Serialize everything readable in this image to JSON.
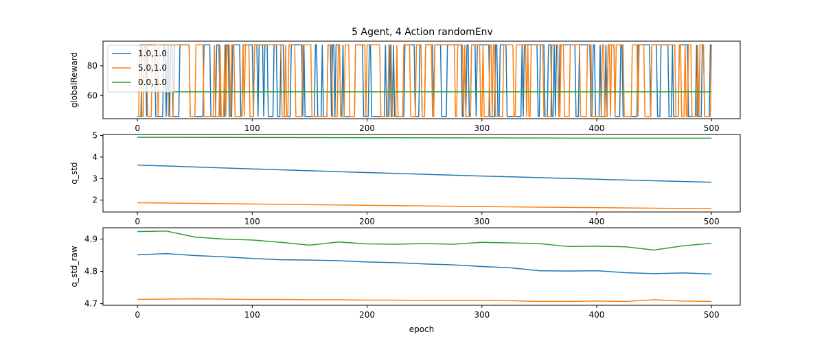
{
  "figure": {
    "title": "5 Agent, 4 Action randomEnv"
  },
  "legend": {
    "entries": [
      {
        "label": "1.0,1.0",
        "color": "#1f77b4"
      },
      {
        "label": "5.0,1.0",
        "color": "#ff7f0e"
      },
      {
        "label": "0.0,1.0",
        "color": "#2ca02c"
      }
    ]
  },
  "chart_data": [
    {
      "type": "line",
      "title": "5 Agent, 4 Action randomEnv",
      "xlabel": "",
      "ylabel": "globalReward",
      "xlim": [
        -30,
        525
      ],
      "ylim": [
        44.5,
        96.5
      ],
      "xticks": [
        0,
        100,
        200,
        300,
        400,
        500
      ],
      "yticks": [
        60,
        80
      ],
      "legend": "top-left",
      "series": [
        {
          "name": "1.0,1.0",
          "color": "#1f77b4",
          "pattern": "switch",
          "levels": [
            46,
            94
          ],
          "x": [
            0,
            500
          ]
        },
        {
          "name": "5.0,1.0",
          "color": "#ff7f0e",
          "pattern": "switch",
          "levels": [
            46,
            94
          ],
          "x": [
            0,
            500
          ]
        },
        {
          "name": "0.0,1.0",
          "color": "#2ca02c",
          "pattern": "flat",
          "levels": [
            62.5
          ],
          "x": [
            0,
            500
          ]
        }
      ]
    },
    {
      "type": "line",
      "xlabel": "",
      "ylabel": "q_std",
      "xlim": [
        -30,
        525
      ],
      "ylim": [
        1.45,
        5.05
      ],
      "xticks": [
        0,
        100,
        200,
        300,
        400,
        500
      ],
      "yticks": [
        2,
        3,
        4,
        5
      ],
      "series": [
        {
          "name": "1.0,1.0",
          "color": "#1f77b4",
          "x": [
            0,
            100,
            200,
            300,
            400,
            500
          ],
          "y": [
            3.63,
            3.45,
            3.28,
            3.12,
            2.97,
            2.83
          ]
        },
        {
          "name": "5.0,1.0",
          "color": "#ff7f0e",
          "x": [
            0,
            100,
            200,
            300,
            400,
            500
          ],
          "y": [
            1.88,
            1.82,
            1.76,
            1.7,
            1.65,
            1.6
          ]
        },
        {
          "name": "0.0,1.0",
          "color": "#2ca02c",
          "x": [
            0,
            100,
            200,
            300,
            400,
            500
          ],
          "y": [
            4.92,
            4.91,
            4.9,
            4.89,
            4.88,
            4.88
          ]
        }
      ]
    },
    {
      "type": "line",
      "xlabel": "epoch",
      "ylabel": "q_std_raw",
      "xlim": [
        -30,
        525
      ],
      "ylim": [
        4.695,
        4.935
      ],
      "xticks": [
        0,
        100,
        200,
        300,
        400,
        500
      ],
      "yticks": [
        4.7,
        4.8,
        4.9
      ],
      "series": [
        {
          "name": "1.0,1.0",
          "color": "#1f77b4",
          "x": [
            0,
            25,
            50,
            75,
            100,
            125,
            150,
            175,
            200,
            225,
            250,
            275,
            300,
            325,
            350,
            375,
            400,
            425,
            450,
            475,
            500
          ],
          "y": [
            4.851,
            4.855,
            4.849,
            4.845,
            4.84,
            4.836,
            4.835,
            4.833,
            4.829,
            4.827,
            4.823,
            4.82,
            4.815,
            4.811,
            4.802,
            4.801,
            4.802,
            4.796,
            4.793,
            4.795,
            4.792
          ]
        },
        {
          "name": "5.0,1.0",
          "color": "#ff7f0e",
          "x": [
            0,
            25,
            50,
            75,
            100,
            125,
            150,
            175,
            200,
            225,
            250,
            275,
            300,
            325,
            350,
            375,
            400,
            425,
            450,
            475,
            500
          ],
          "y": [
            4.713,
            4.714,
            4.715,
            4.714,
            4.713,
            4.713,
            4.712,
            4.712,
            4.711,
            4.711,
            4.71,
            4.71,
            4.71,
            4.709,
            4.707,
            4.707,
            4.708,
            4.707,
            4.712,
            4.708,
            4.707
          ]
        },
        {
          "name": "0.0,1.0",
          "color": "#2ca02c",
          "x": [
            0,
            25,
            50,
            75,
            100,
            125,
            150,
            175,
            200,
            225,
            250,
            275,
            300,
            325,
            350,
            375,
            400,
            425,
            450,
            475,
            500
          ],
          "y": [
            4.923,
            4.925,
            4.906,
            4.9,
            4.897,
            4.89,
            4.881,
            4.891,
            4.885,
            4.884,
            4.886,
            4.884,
            4.89,
            4.888,
            4.886,
            4.877,
            4.878,
            4.876,
            4.866,
            4.879,
            4.887
          ]
        }
      ]
    }
  ]
}
